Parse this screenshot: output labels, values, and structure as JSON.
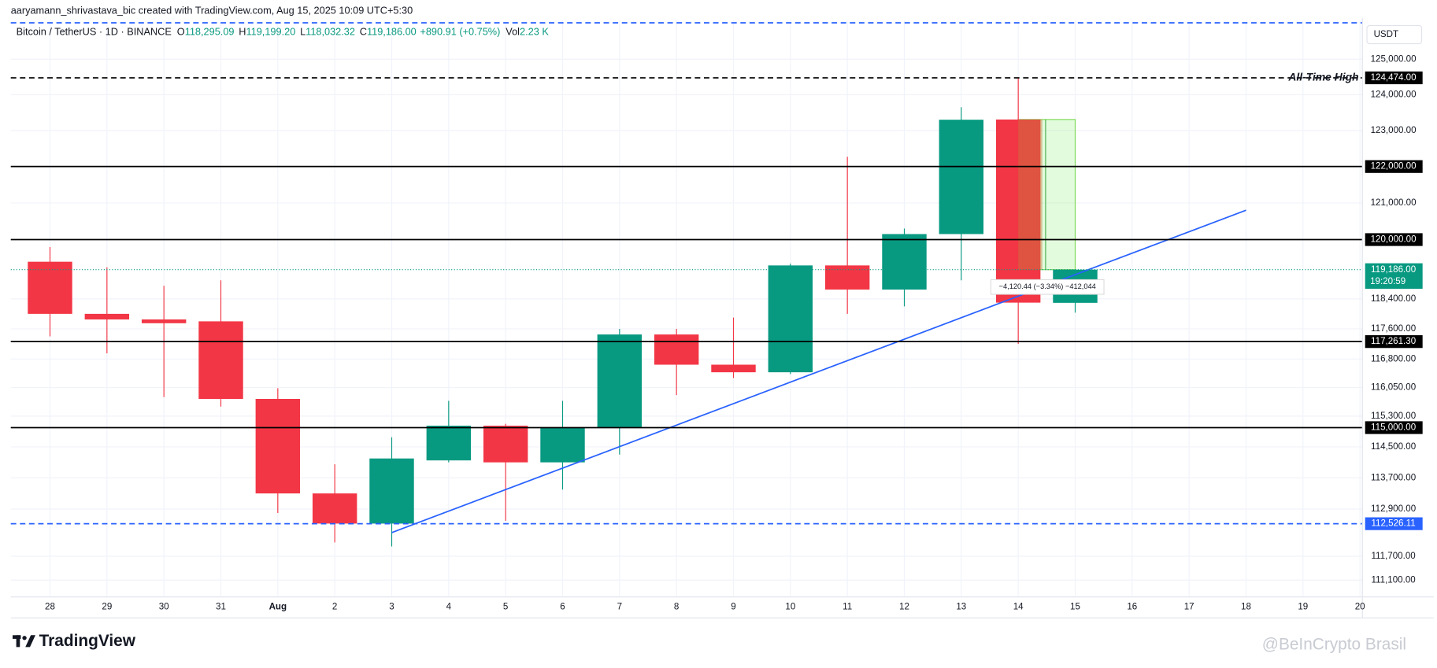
{
  "caption": "aaryamann_shrivastava_bic created with TradingView.com, Aug 15, 2025 10:09 UTC+5:30",
  "chart_data": {
    "type": "candlestick",
    "symbol": "Bitcoin / TetherUS · 1D · BINANCE",
    "ohlc_header": [
      {
        "key": "O",
        "value": "118,295.09"
      },
      {
        "key": "H",
        "value": "119,199.20"
      },
      {
        "key": "L",
        "value": "118,032.32"
      },
      {
        "key": "C",
        "value": "119,186.00"
      }
    ],
    "change": "+890.91 (+0.75%)",
    "volume_key": "Vol",
    "volume": "2.23 K",
    "currency": "USDT",
    "categories": [
      "28",
      "29",
      "30",
      "31",
      "Aug",
      "2",
      "3",
      "4",
      "5",
      "6",
      "7",
      "8",
      "9",
      "10",
      "11",
      "12",
      "13",
      "14",
      "15",
      "16",
      "17",
      "18",
      "19",
      "20"
    ],
    "open": [
      119400,
      118000,
      117850,
      117800,
      115750,
      113300,
      112530,
      114150,
      115050,
      114100,
      115000,
      117450,
      116650,
      116450,
      119300,
      118650,
      120150,
      123306.44,
      118295.09,
      null,
      null,
      null,
      null,
      null
    ],
    "high": [
      119800,
      119250,
      118750,
      118900,
      116030,
      114050,
      114750,
      115700,
      115100,
      115700,
      117600,
      117600,
      117900,
      119350,
      122270,
      120300,
      123650,
      124474,
      119199.2,
      null,
      null,
      null,
      null,
      null
    ],
    "low": [
      117400,
      116950,
      115800,
      115550,
      112800,
      112050,
      111950,
      114100,
      112600,
      113400,
      114300,
      115850,
      116300,
      116400,
      118000,
      118200,
      118900,
      117200,
      118032.32,
      null,
      null,
      null,
      null,
      null
    ],
    "close": [
      118000,
      117850,
      117750,
      115750,
      113300,
      112530,
      114200,
      115050,
      114100,
      115000,
      117450,
      116650,
      116450,
      119300,
      118650,
      120150,
      123300,
      118300,
      119186,
      null,
      null,
      null,
      null,
      null
    ],
    "up_color": "#089981",
    "down_color": "#f23645",
    "ylim": [
      110700,
      126100
    ],
    "log_scale": true,
    "grid": true,
    "yticks": [
      {
        "value": 125000,
        "label": "125,000.00"
      },
      {
        "value": 124000,
        "label": "124,000.00"
      },
      {
        "value": 123000,
        "label": "123,000.00"
      },
      {
        "value": 121000,
        "label": "121,000.00"
      },
      {
        "value": 118400,
        "label": "118,400.00"
      },
      {
        "value": 117600,
        "label": "117,600.00"
      },
      {
        "value": 116800,
        "label": "116,800.00"
      },
      {
        "value": 116050,
        "label": "116,050.00"
      },
      {
        "value": 115300,
        "label": "115,300.00"
      },
      {
        "value": 114500,
        "label": "114,500.00"
      },
      {
        "value": 113700,
        "label": "113,700.00"
      },
      {
        "value": 112900,
        "label": "112,900.00"
      },
      {
        "value": 111700,
        "label": "111,700.00"
      },
      {
        "value": 111100,
        "label": "111,100.00"
      }
    ],
    "levels": [
      {
        "value": 126035,
        "style": "dashed",
        "color": "#2962ff"
      },
      {
        "value": 124474,
        "label": "124,474.00",
        "style": "dashed",
        "color": "#000000"
      },
      {
        "value": 122000,
        "label": "122,000.00",
        "style": "solid",
        "color": "#000000"
      },
      {
        "value": 120000,
        "label": "120,000.00",
        "style": "solid",
        "color": "#000000"
      },
      {
        "value": 117261.3,
        "label": "117,261.30",
        "style": "solid",
        "color": "#000000"
      },
      {
        "value": 115000,
        "label": "115,000.00",
        "style": "solid",
        "color": "#000000"
      },
      {
        "value": 112526.11,
        "label": "112,526.11",
        "style": "dashed",
        "color": "#2962ff"
      }
    ],
    "annotations": [
      {
        "text": "All-Time High",
        "value": 124474
      }
    ],
    "trendline": {
      "x": [
        "3",
        "18"
      ],
      "y": [
        112300,
        120800
      ],
      "color": "#2962ff"
    },
    "measure": {
      "x": [
        "14",
        "15"
      ],
      "from": 123306.44,
      "to": 119186,
      "label": "−4,120.44 (−3.34%) −412,044"
    },
    "last_price": {
      "value": 119186,
      "label": "119,186.00",
      "countdown": "19:20:59"
    }
  },
  "footer": {
    "logo": "TradingView",
    "watermark": "@BeInCrypto Brasil"
  }
}
